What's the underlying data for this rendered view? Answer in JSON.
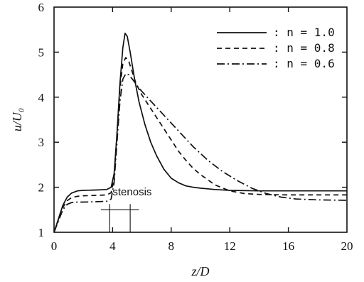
{
  "chart_data": {
    "type": "line",
    "xlabel": "z/D",
    "ylabel": "u/U₀",
    "xlim": [
      0,
      20
    ],
    "ylim": [
      1,
      6
    ],
    "x_ticks": [
      "0",
      "4",
      "8",
      "12",
      "16",
      "20"
    ],
    "y_ticks": [
      "1",
      "2",
      "3",
      "4",
      "5",
      "6"
    ],
    "grid": false,
    "legend_position": "top-right",
    "annotation": {
      "text": "stenosis",
      "x": 4.0,
      "y": 1.5,
      "range": [
        3.2,
        5.8
      ]
    },
    "series": [
      {
        "name": "n = 1.0",
        "style": "solid",
        "x": [
          0,
          0.3,
          0.6,
          0.9,
          1.2,
          1.6,
          2.0,
          3.0,
          3.6,
          3.9,
          4.1,
          4.3,
          4.5,
          4.7,
          4.85,
          5.0,
          5.2,
          5.5,
          5.8,
          6.2,
          6.6,
          7.0,
          7.5,
          8.0,
          8.5,
          9.0,
          9.5,
          10.0,
          11.0,
          12.0,
          14.0,
          16.0,
          18.0,
          20.0
        ],
        "y": [
          1.0,
          1.3,
          1.6,
          1.78,
          1.87,
          1.92,
          1.93,
          1.94,
          1.95,
          2.0,
          2.3,
          3.2,
          4.3,
          5.1,
          5.42,
          5.35,
          5.0,
          4.4,
          3.9,
          3.4,
          3.0,
          2.7,
          2.4,
          2.2,
          2.1,
          2.03,
          2.0,
          1.98,
          1.95,
          1.93,
          1.92,
          1.92,
          1.92,
          1.92
        ]
      },
      {
        "name": "n = 0.8",
        "style": "dashed",
        "x": [
          0,
          0.3,
          0.6,
          0.9,
          1.2,
          1.6,
          2.0,
          3.0,
          3.6,
          3.9,
          4.1,
          4.3,
          4.5,
          4.7,
          4.9,
          5.1,
          5.3,
          5.6,
          6.0,
          6.5,
          7.0,
          7.5,
          8.0,
          8.5,
          9.0,
          9.5,
          10.0,
          11.0,
          12.0,
          13.0,
          14.0,
          16.0,
          18.0,
          20.0
        ],
        "y": [
          1.0,
          1.28,
          1.55,
          1.7,
          1.77,
          1.8,
          1.81,
          1.82,
          1.83,
          1.88,
          2.2,
          3.2,
          4.2,
          4.75,
          4.88,
          4.8,
          4.6,
          4.3,
          4.05,
          3.8,
          3.55,
          3.3,
          3.05,
          2.8,
          2.6,
          2.42,
          2.28,
          2.05,
          1.92,
          1.86,
          1.84,
          1.83,
          1.83,
          1.83
        ]
      },
      {
        "name": "n = 0.6",
        "style": "dashdot",
        "x": [
          0,
          0.3,
          0.6,
          0.9,
          1.2,
          1.6,
          2.0,
          3.0,
          3.6,
          3.9,
          4.1,
          4.3,
          4.5,
          4.7,
          4.9,
          5.1,
          5.4,
          5.8,
          6.5,
          7.5,
          8.5,
          9.5,
          10.5,
          11.5,
          12.5,
          13.5,
          14.5,
          15.5,
          16.5,
          18.0,
          20.0
        ],
        "y": [
          1.0,
          1.25,
          1.5,
          1.62,
          1.66,
          1.67,
          1.67,
          1.68,
          1.69,
          1.74,
          2.1,
          3.0,
          3.9,
          4.4,
          4.52,
          4.5,
          4.38,
          4.2,
          3.95,
          3.6,
          3.25,
          2.9,
          2.6,
          2.35,
          2.15,
          1.98,
          1.86,
          1.78,
          1.74,
          1.72,
          1.71
        ]
      }
    ]
  }
}
